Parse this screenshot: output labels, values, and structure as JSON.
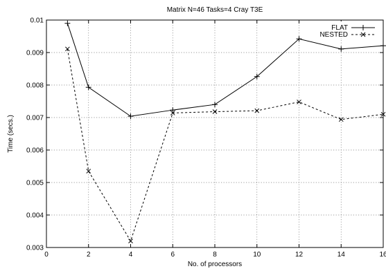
{
  "chart_data": {
    "type": "line",
    "title": "Matrix N=46 Tasks=4 Cray T3E",
    "xlabel": "No. of processors",
    "ylabel": "Time (secs.)",
    "xlim": [
      0,
      16
    ],
    "ylim": [
      0.003,
      0.01
    ],
    "x_ticks": [
      "0",
      "2",
      "4",
      "6",
      "8",
      "10",
      "12",
      "14",
      "16"
    ],
    "y_ticks": [
      "0.003",
      "0.004",
      "0.005",
      "0.006",
      "0.007",
      "0.008",
      "0.009",
      "0.01"
    ],
    "grid": true,
    "legend_position": "top-right",
    "x": [
      1,
      2,
      4,
      6,
      8,
      10,
      12,
      14,
      16
    ],
    "series": [
      {
        "name": "FLAT",
        "marker": "plus",
        "line": "solid",
        "values": [
          0.0099,
          0.00793,
          0.00704,
          0.00723,
          0.0074,
          0.00826,
          0.00942,
          0.00911,
          0.00921
        ]
      },
      {
        "name": "NESTED",
        "marker": "cross",
        "line": "dashed",
        "values": [
          0.00911,
          0.00535,
          0.0032,
          0.00714,
          0.00718,
          0.00721,
          0.00748,
          0.00694,
          0.0071
        ]
      }
    ]
  }
}
